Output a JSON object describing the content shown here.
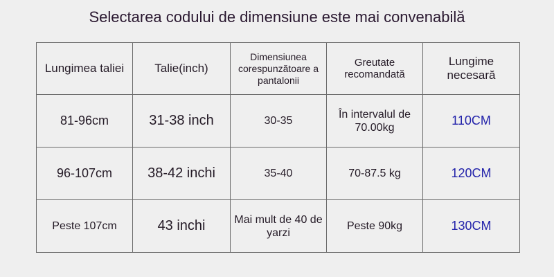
{
  "title": "Selectarea codului de dimensiune este mai convenabilă",
  "headers": [
    "Lungimea taliei",
    "Talie(inch)",
    "Dimensiunea corespunzătoare a pantalonii",
    "Greutate recomandată",
    "Lungime necesară"
  ],
  "rows": [
    [
      "81-96cm",
      "31-38 inch",
      "30-35",
      "În intervalul de 70.00kg",
      "110CM"
    ],
    [
      "96-107cm",
      "38-42 inchi",
      "35-40",
      "70-87.5 kg",
      "120CM"
    ],
    [
      "Peste 107cm",
      "43 inchi",
      "Mai mult de 40 de yarzi",
      "Peste 90kg",
      "130CM"
    ]
  ],
  "colors": {
    "length_column": "#2222aa"
  }
}
